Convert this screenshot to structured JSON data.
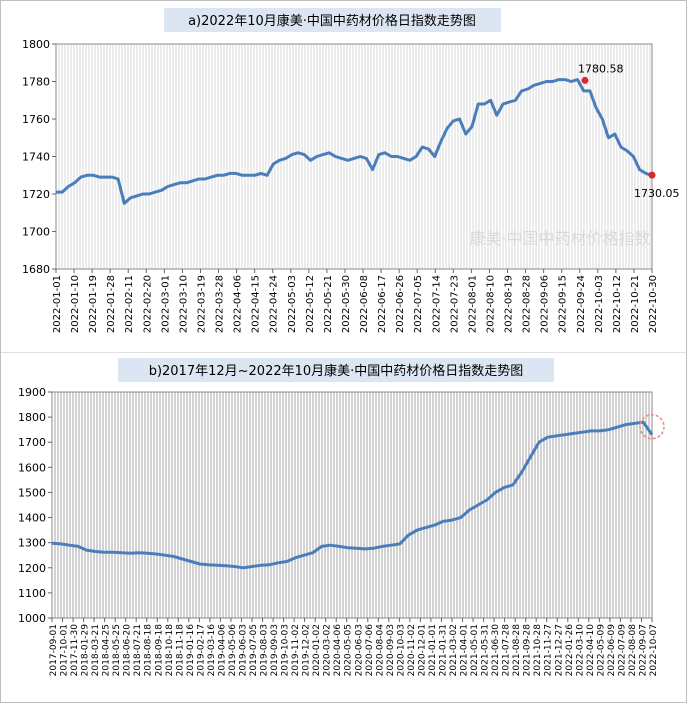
{
  "chart_data": [
    {
      "type": "line",
      "title": "a)2022年10月康美·中国中药材价格日指数走势图",
      "xlabel": "",
      "ylabel": "",
      "ylim": [
        1680,
        1800
      ],
      "y_ticks": [
        1680,
        1700,
        1720,
        1740,
        1760,
        1780,
        1800
      ],
      "x_tick_labels": [
        "2022-01-01",
        "2022-01-10",
        "2022-01-19",
        "2022-01-28",
        "2022-02-11",
        "2022-02-20",
        "2022-03-01",
        "2022-03-10",
        "2022-03-19",
        "2022-03-28",
        "2022-04-06",
        "2022-04-15",
        "2022-04-24",
        "2022-05-03",
        "2022-05-12",
        "2022-05-21",
        "2022-05-30",
        "2022-06-08",
        "2022-06-17",
        "2022-06-26",
        "2022-07-05",
        "2022-07-14",
        "2022-07-23",
        "2022-08-01",
        "2022-08-10",
        "2022-08-19",
        "2022-08-28",
        "2022-09-06",
        "2022-09-15",
        "2022-09-24",
        "2022-10-03",
        "2022-10-12",
        "2022-10-21",
        "2022-10-30"
      ],
      "grid": "vertical dense",
      "series": [
        {
          "values": [
            1721,
            1721,
            1724,
            1726,
            1729,
            1730,
            1730,
            1729,
            1729,
            1729,
            1728,
            1715,
            1718,
            1719,
            1720,
            1720,
            1721,
            1722,
            1724,
            1725,
            1726,
            1726,
            1727,
            1728,
            1728,
            1729,
            1730,
            1730,
            1731,
            1731,
            1730,
            1730,
            1730,
            1731,
            1730,
            1736,
            1738,
            1739,
            1741,
            1742,
            1741,
            1738,
            1740,
            1741,
            1742,
            1740,
            1739,
            1738,
            1739,
            1740,
            1739,
            1733,
            1741,
            1742,
            1740,
            1740,
            1739,
            1738,
            1740,
            1745,
            1744,
            1740,
            1748,
            1755,
            1759,
            1760,
            1752,
            1756,
            1768,
            1768,
            1770,
            1762,
            1768,
            1769,
            1770,
            1775,
            1776,
            1778,
            1779,
            1780,
            1780,
            1781,
            1781,
            1780,
            1781,
            1775,
            1775,
            1766,
            1760,
            1750,
            1752,
            1745,
            1743,
            1740,
            1733,
            1731,
            1730
          ]
        }
      ],
      "point_labels": [
        {
          "x": "2022-10-01",
          "value": 1780.58,
          "text": "1780.58"
        },
        {
          "x": "2022-10-30",
          "value": 1730.05,
          "text": "1730.05"
        }
      ],
      "watermark": "康美·中国中药材价格指数"
    },
    {
      "type": "line",
      "title": "b)2017年12月~2022年10月康美·中国中药材价格日指数走势图",
      "xlabel": "",
      "ylabel": "",
      "ylim": [
        1000,
        1900
      ],
      "y_ticks": [
        1000,
        1100,
        1200,
        1300,
        1400,
        1500,
        1600,
        1700,
        1800,
        1900
      ],
      "x_tick_labels": [
        "2017-09-01",
        "2017-10-01",
        "2017-11-30",
        "2018-01-29",
        "2018-03-21",
        "2018-04-25",
        "2018-05-25",
        "2018-06-20",
        "2018-07-21",
        "2018-08-18",
        "2018-09-18",
        "2018-10-18",
        "2018-11-18",
        "2019-01-16",
        "2019-02-17",
        "2019-03-16",
        "2019-04-06",
        "2019-05-06",
        "2019-06-03",
        "2019-07-05",
        "2019-08-03",
        "2019-09-03",
        "2019-10-03",
        "2019-11-02",
        "2019-12-02",
        "2020-01-02",
        "2020-03-02",
        "2020-04-06",
        "2020-05-05",
        "2020-06-03",
        "2020-07-06",
        "2020-08-04",
        "2020-09-03",
        "2020-10-03",
        "2020-11-02",
        "2020-12-01",
        "2021-01-01",
        "2021-01-31",
        "2021-03-02",
        "2021-04-01",
        "2021-05-01",
        "2021-05-31",
        "2021-06-30",
        "2021-07-28",
        "2021-08-28",
        "2021-09-28",
        "2021-10-28",
        "2021-11-27",
        "2021-12-27",
        "2022-01-26",
        "2022-03-10",
        "2022-04-10",
        "2022-05-09",
        "2022-06-09",
        "2022-07-09",
        "2022-08-08",
        "2022-09-07",
        "2022-10-07"
      ],
      "grid": "vertical dense",
      "series": [
        {
          "values": [
            1298,
            1295,
            1290,
            1285,
            1270,
            1265,
            1262,
            1262,
            1260,
            1258,
            1260,
            1258,
            1255,
            1250,
            1245,
            1235,
            1225,
            1215,
            1212,
            1210,
            1208,
            1205,
            1200,
            1205,
            1210,
            1212,
            1220,
            1225,
            1240,
            1250,
            1260,
            1285,
            1290,
            1285,
            1280,
            1278,
            1275,
            1278,
            1285,
            1290,
            1295,
            1330,
            1350,
            1360,
            1370,
            1385,
            1390,
            1400,
            1430,
            1450,
            1470,
            1500,
            1520,
            1530,
            1580,
            1640,
            1700,
            1720,
            1725,
            1730,
            1735,
            1740,
            1745,
            1745,
            1750,
            1760,
            1770,
            1775,
            1780,
            1730
          ]
        }
      ],
      "highlight": "circle at last point"
    }
  ]
}
